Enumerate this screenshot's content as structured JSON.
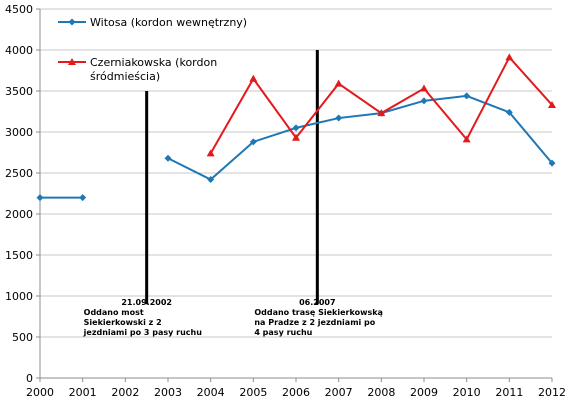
{
  "chart_data": {
    "type": "line",
    "title": "",
    "xlabel": "",
    "ylabel": "",
    "ylim": [
      0,
      4500
    ],
    "y_ticks": [
      0,
      500,
      1000,
      1500,
      2000,
      2500,
      3000,
      3500,
      4000,
      4500
    ],
    "y_tick_labels": [
      "0",
      "500",
      "1000",
      "1500",
      "2000",
      "2500",
      "3000",
      "3500",
      "4000",
      "4500"
    ],
    "categories": [
      "2000",
      "2001",
      "2002",
      "2003",
      "2004",
      "2005",
      "2006",
      "2007",
      "2008",
      "2009",
      "2010",
      "2011",
      "2012"
    ],
    "grid": "horizontal",
    "legend_position": "top-left",
    "series": [
      {
        "name": "Witosa (kordon wewnętrzny)",
        "color": "#1f77b4",
        "marker": "diamond",
        "values": [
          2200,
          2200,
          null,
          2680,
          2420,
          2880,
          3050,
          3170,
          3230,
          3380,
          3440,
          3240,
          2620
        ]
      },
      {
        "name": "Czerniakowska (kordon śródmieścia)",
        "legend_lines": [
          "Czerniakowska (kordon",
          "śródmieścia)"
        ],
        "color": "#e31a1c",
        "marker": "triangle",
        "values": [
          null,
          null,
          null,
          null,
          2740,
          3650,
          2930,
          3590,
          3230,
          3530,
          2910,
          3910,
          3330
        ]
      }
    ],
    "annotations": [
      {
        "x": 2002.5,
        "y_top": 3500,
        "date": "21.09.2002",
        "lines": [
          "Oddano most",
          "Siekierkowski z 2",
          "jezdniami po 3 pasy ruchu"
        ]
      },
      {
        "x": 2006.5,
        "y_top": 4000,
        "date": "06.2007",
        "lines": [
          "Oddano trasę Siekierkowską",
          "na Pradze z 2 jezdniami po",
          "4 pasy ruchu"
        ]
      }
    ]
  }
}
